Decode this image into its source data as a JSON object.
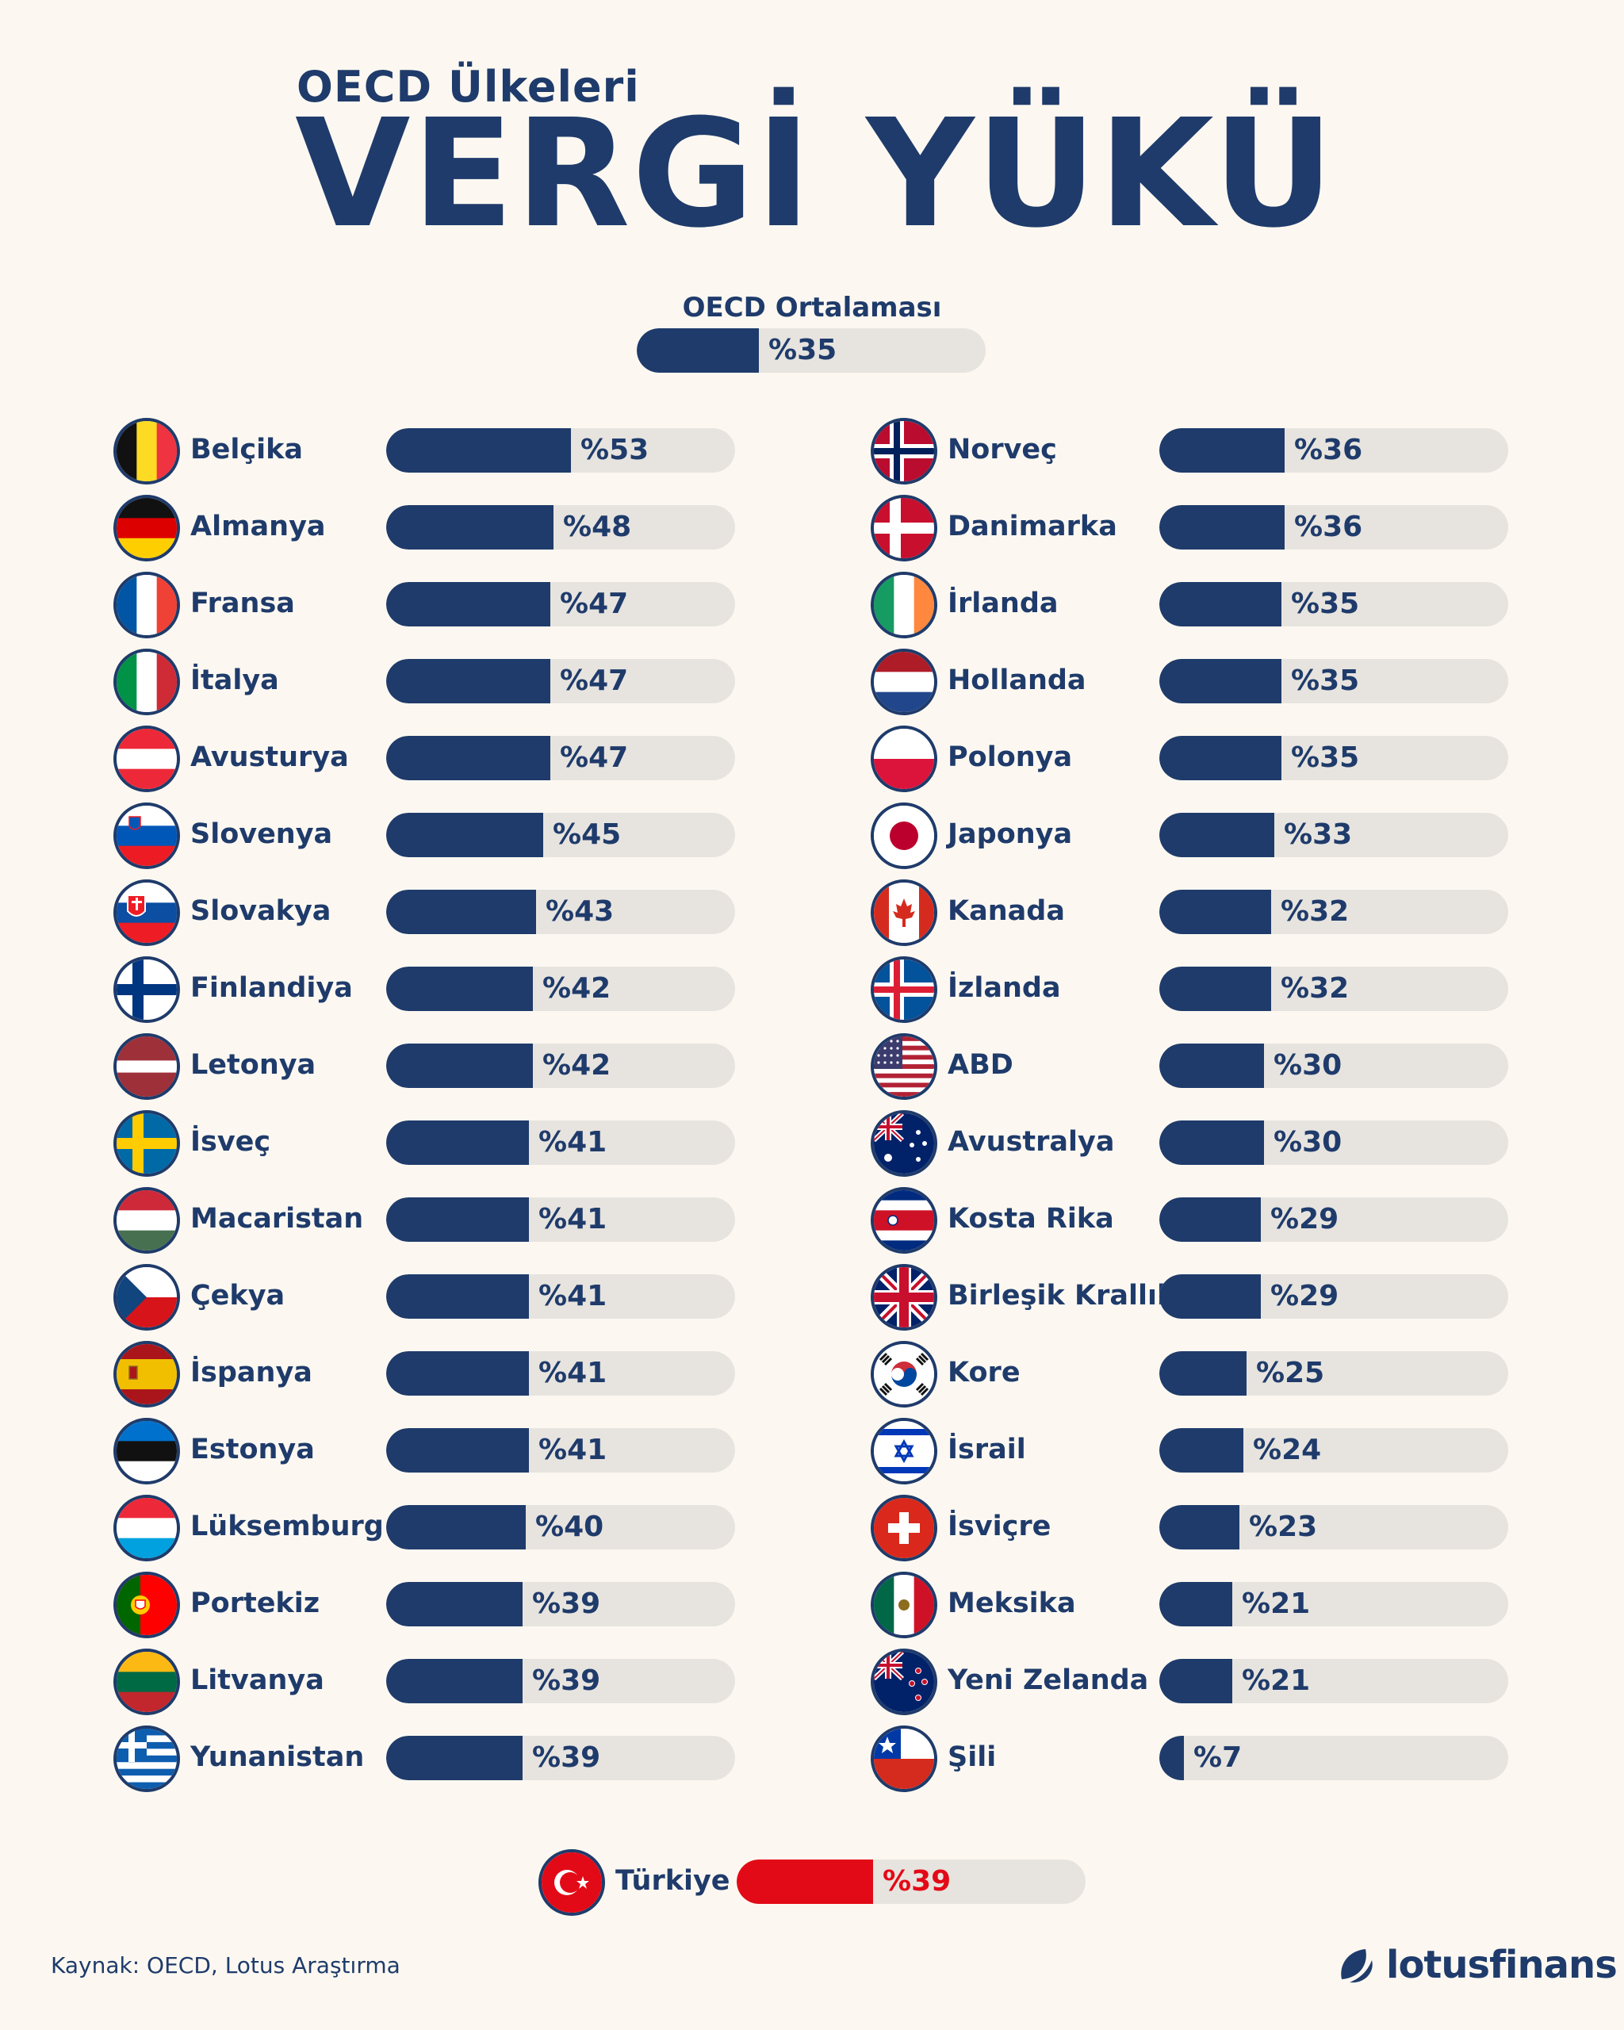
{
  "header": {
    "subtitle": "OECD Ülkeleri",
    "title": "VERGİ YÜKÜ"
  },
  "average": {
    "label": "OECD Ortalaması",
    "value": 35,
    "value_label": "%35"
  },
  "chart_data": {
    "type": "bar",
    "orientation": "horizontal",
    "title": "VERGİ YÜKÜ",
    "subtitle": "OECD Ülkeleri",
    "reference": {
      "label": "OECD Ortalaması",
      "value": 35
    },
    "xlim": [
      0,
      100
    ],
    "columns": [
      [
        {
          "name": "Belçika",
          "value": 53,
          "flag": "belgium"
        },
        {
          "name": "Almanya",
          "value": 48,
          "flag": "germany"
        },
        {
          "name": "Fransa",
          "value": 47,
          "flag": "france"
        },
        {
          "name": "İtalya",
          "value": 47,
          "flag": "italy"
        },
        {
          "name": "Avusturya",
          "value": 47,
          "flag": "austria"
        },
        {
          "name": "Slovenya",
          "value": 45,
          "flag": "slovenia"
        },
        {
          "name": "Slovakya",
          "value": 43,
          "flag": "slovakia"
        },
        {
          "name": "Finlandiya",
          "value": 42,
          "flag": "finland"
        },
        {
          "name": "Letonya",
          "value": 42,
          "flag": "latvia"
        },
        {
          "name": "İsveç",
          "value": 41,
          "flag": "sweden"
        },
        {
          "name": "Macaristan",
          "value": 41,
          "flag": "hungary"
        },
        {
          "name": "Çekya",
          "value": 41,
          "flag": "czechia"
        },
        {
          "name": "İspanya",
          "value": 41,
          "flag": "spain"
        },
        {
          "name": "Estonya",
          "value": 41,
          "flag": "estonia"
        },
        {
          "name": "Lüksemburg",
          "value": 40,
          "flag": "luxembourg"
        },
        {
          "name": "Portekiz",
          "value": 39,
          "flag": "portugal"
        },
        {
          "name": "Litvanya",
          "value": 39,
          "flag": "lithuania"
        },
        {
          "name": "Yunanistan",
          "value": 39,
          "flag": "greece"
        }
      ],
      [
        {
          "name": "Norveç",
          "value": 36,
          "flag": "norway"
        },
        {
          "name": "Danimarka",
          "value": 36,
          "flag": "denmark"
        },
        {
          "name": "İrlanda",
          "value": 35,
          "flag": "ireland"
        },
        {
          "name": "Hollanda",
          "value": 35,
          "flag": "netherlands"
        },
        {
          "name": "Polonya",
          "value": 35,
          "flag": "poland"
        },
        {
          "name": "Japonya",
          "value": 33,
          "flag": "japan"
        },
        {
          "name": "Kanada",
          "value": 32,
          "flag": "canada"
        },
        {
          "name": "İzlanda",
          "value": 32,
          "flag": "iceland"
        },
        {
          "name": "ABD",
          "value": 30,
          "flag": "usa"
        },
        {
          "name": "Avustralya",
          "value": 30,
          "flag": "australia"
        },
        {
          "name": "Kosta Rika",
          "value": 29,
          "flag": "costarica"
        },
        {
          "name": "Birleşik Krallık",
          "value": 29,
          "flag": "uk"
        },
        {
          "name": "Kore",
          "value": 25,
          "flag": "korea"
        },
        {
          "name": "İsrail",
          "value": 24,
          "flag": "israel"
        },
        {
          "name": "İsviçre",
          "value": 23,
          "flag": "switzerland"
        },
        {
          "name": "Meksika",
          "value": 21,
          "flag": "mexico"
        },
        {
          "name": "Yeni Zelanda",
          "value": 21,
          "flag": "newzealand"
        },
        {
          "name": "Şili",
          "value": 7,
          "flag": "chile"
        }
      ]
    ],
    "highlight": {
      "name": "Türkiye",
      "value": 39,
      "flag": "turkey"
    },
    "value_prefix": "%"
  },
  "colors": {
    "bar": "#1f3b6b",
    "highlight": "#e30a17",
    "track": "#e7e4df",
    "background": "#fcf8f1"
  },
  "footer": {
    "source": "Kaynak: OECD, Lotus Araştırma",
    "logo": "lotusfinans",
    "logo_icon": "lotus-leaf-icon"
  }
}
